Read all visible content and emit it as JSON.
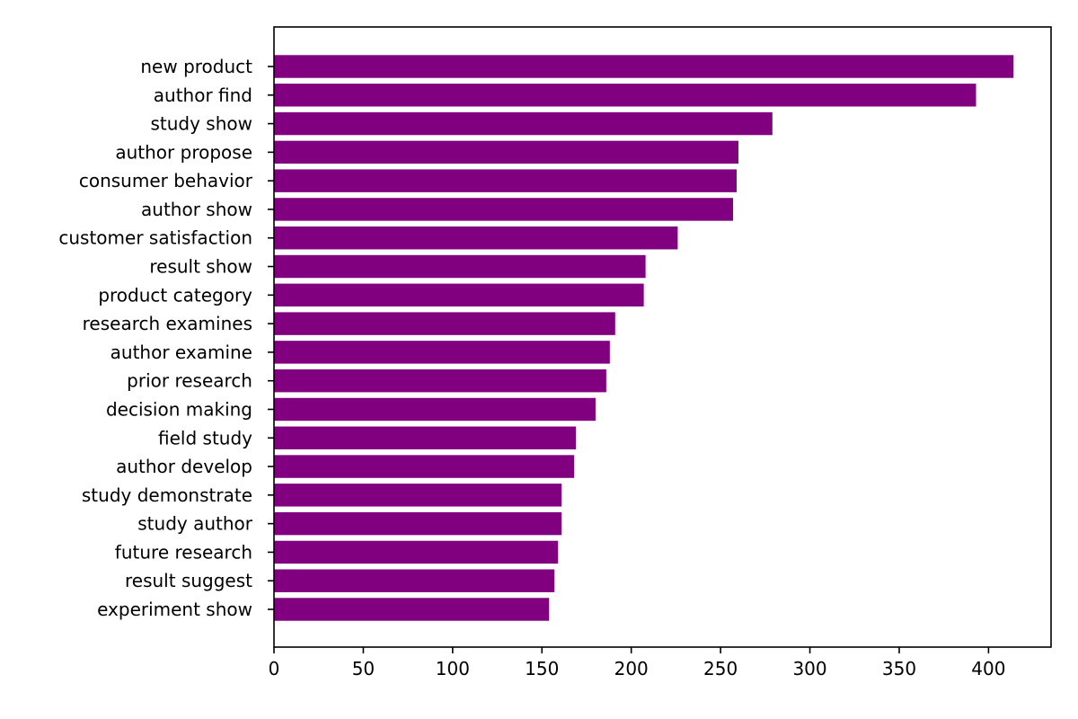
{
  "chart_data": {
    "type": "bar",
    "orientation": "horizontal",
    "title": "",
    "xlabel": "",
    "ylabel": "",
    "xlim": [
      0,
      435
    ],
    "xticks": [
      0,
      50,
      100,
      150,
      200,
      250,
      300,
      350,
      400
    ],
    "grid": false,
    "legend": "none",
    "bar_color": "#800080",
    "categories": [
      "new product",
      "author find",
      "study show",
      "author propose",
      "consumer behavior",
      "author show",
      "customer satisfaction",
      "result show",
      "product category",
      "research examines",
      "author examine",
      "prior research",
      "decision making",
      "field study",
      "author develop",
      "study demonstrate",
      "study author",
      "future research",
      "result suggest",
      "experiment show"
    ],
    "values": [
      414,
      393,
      279,
      260,
      259,
      257,
      226,
      208,
      207,
      191,
      188,
      186,
      180,
      169,
      168,
      161,
      161,
      159,
      157,
      154
    ]
  }
}
